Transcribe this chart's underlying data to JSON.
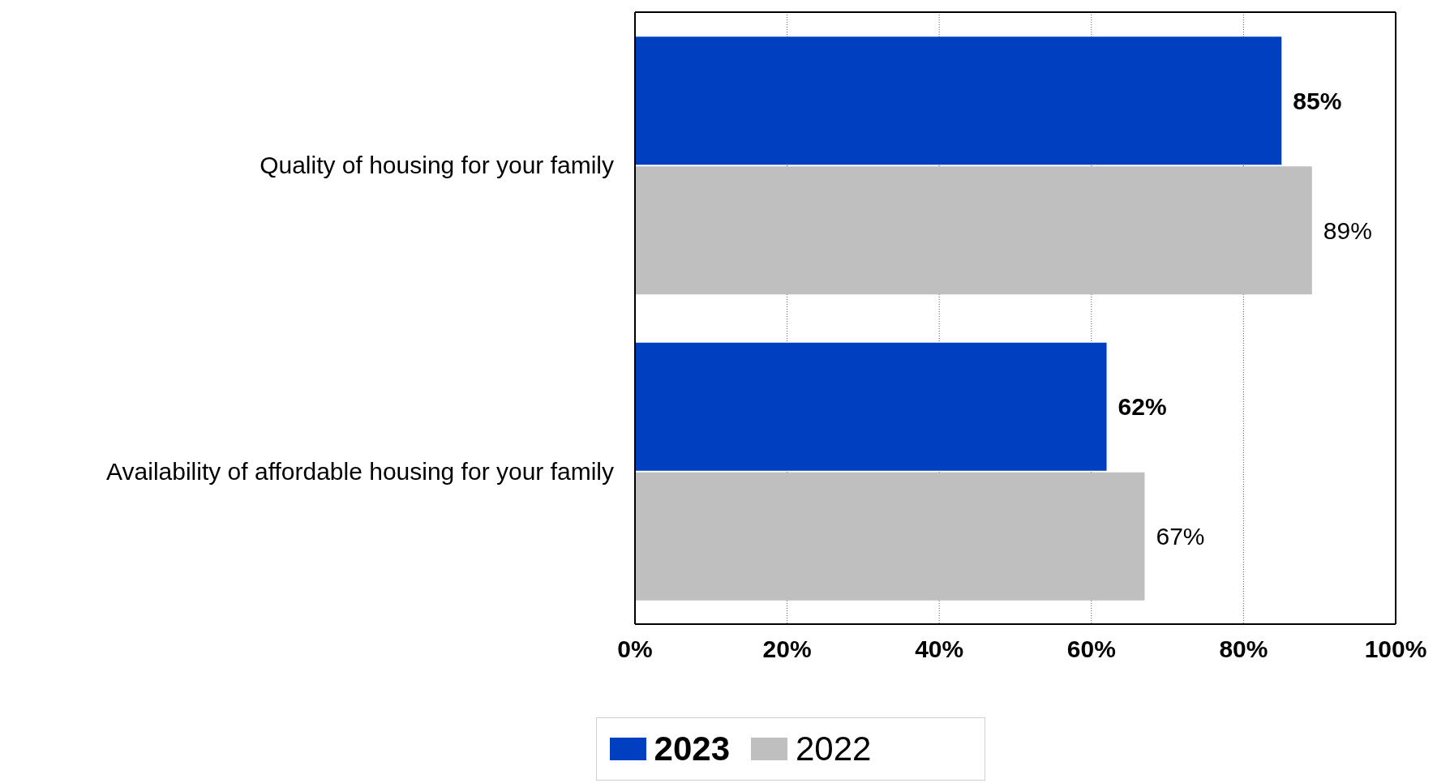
{
  "chart_data": {
    "type": "bar",
    "orientation": "horizontal",
    "categories": [
      "Quality of housing for your family",
      "Availability of affordable housing for your family"
    ],
    "series": [
      {
        "name": "2023",
        "color": "#0040c0",
        "values": [
          85,
          62
        ],
        "value_labels": [
          "85%",
          "62%"
        ]
      },
      {
        "name": "2022",
        "color": "#bfbfbf",
        "values": [
          89,
          67
        ],
        "value_labels": [
          "89%",
          "67%"
        ]
      }
    ],
    "xlim": [
      0,
      100
    ],
    "xticks": [
      {
        "value": 0,
        "label": "0%"
      },
      {
        "value": 20,
        "label": "20%"
      },
      {
        "value": 40,
        "label": "40%"
      },
      {
        "value": 60,
        "label": "60%"
      },
      {
        "value": 80,
        "label": "80%"
      },
      {
        "value": 100,
        "label": "100%"
      }
    ],
    "grid": "x",
    "legend": "bottom"
  }
}
